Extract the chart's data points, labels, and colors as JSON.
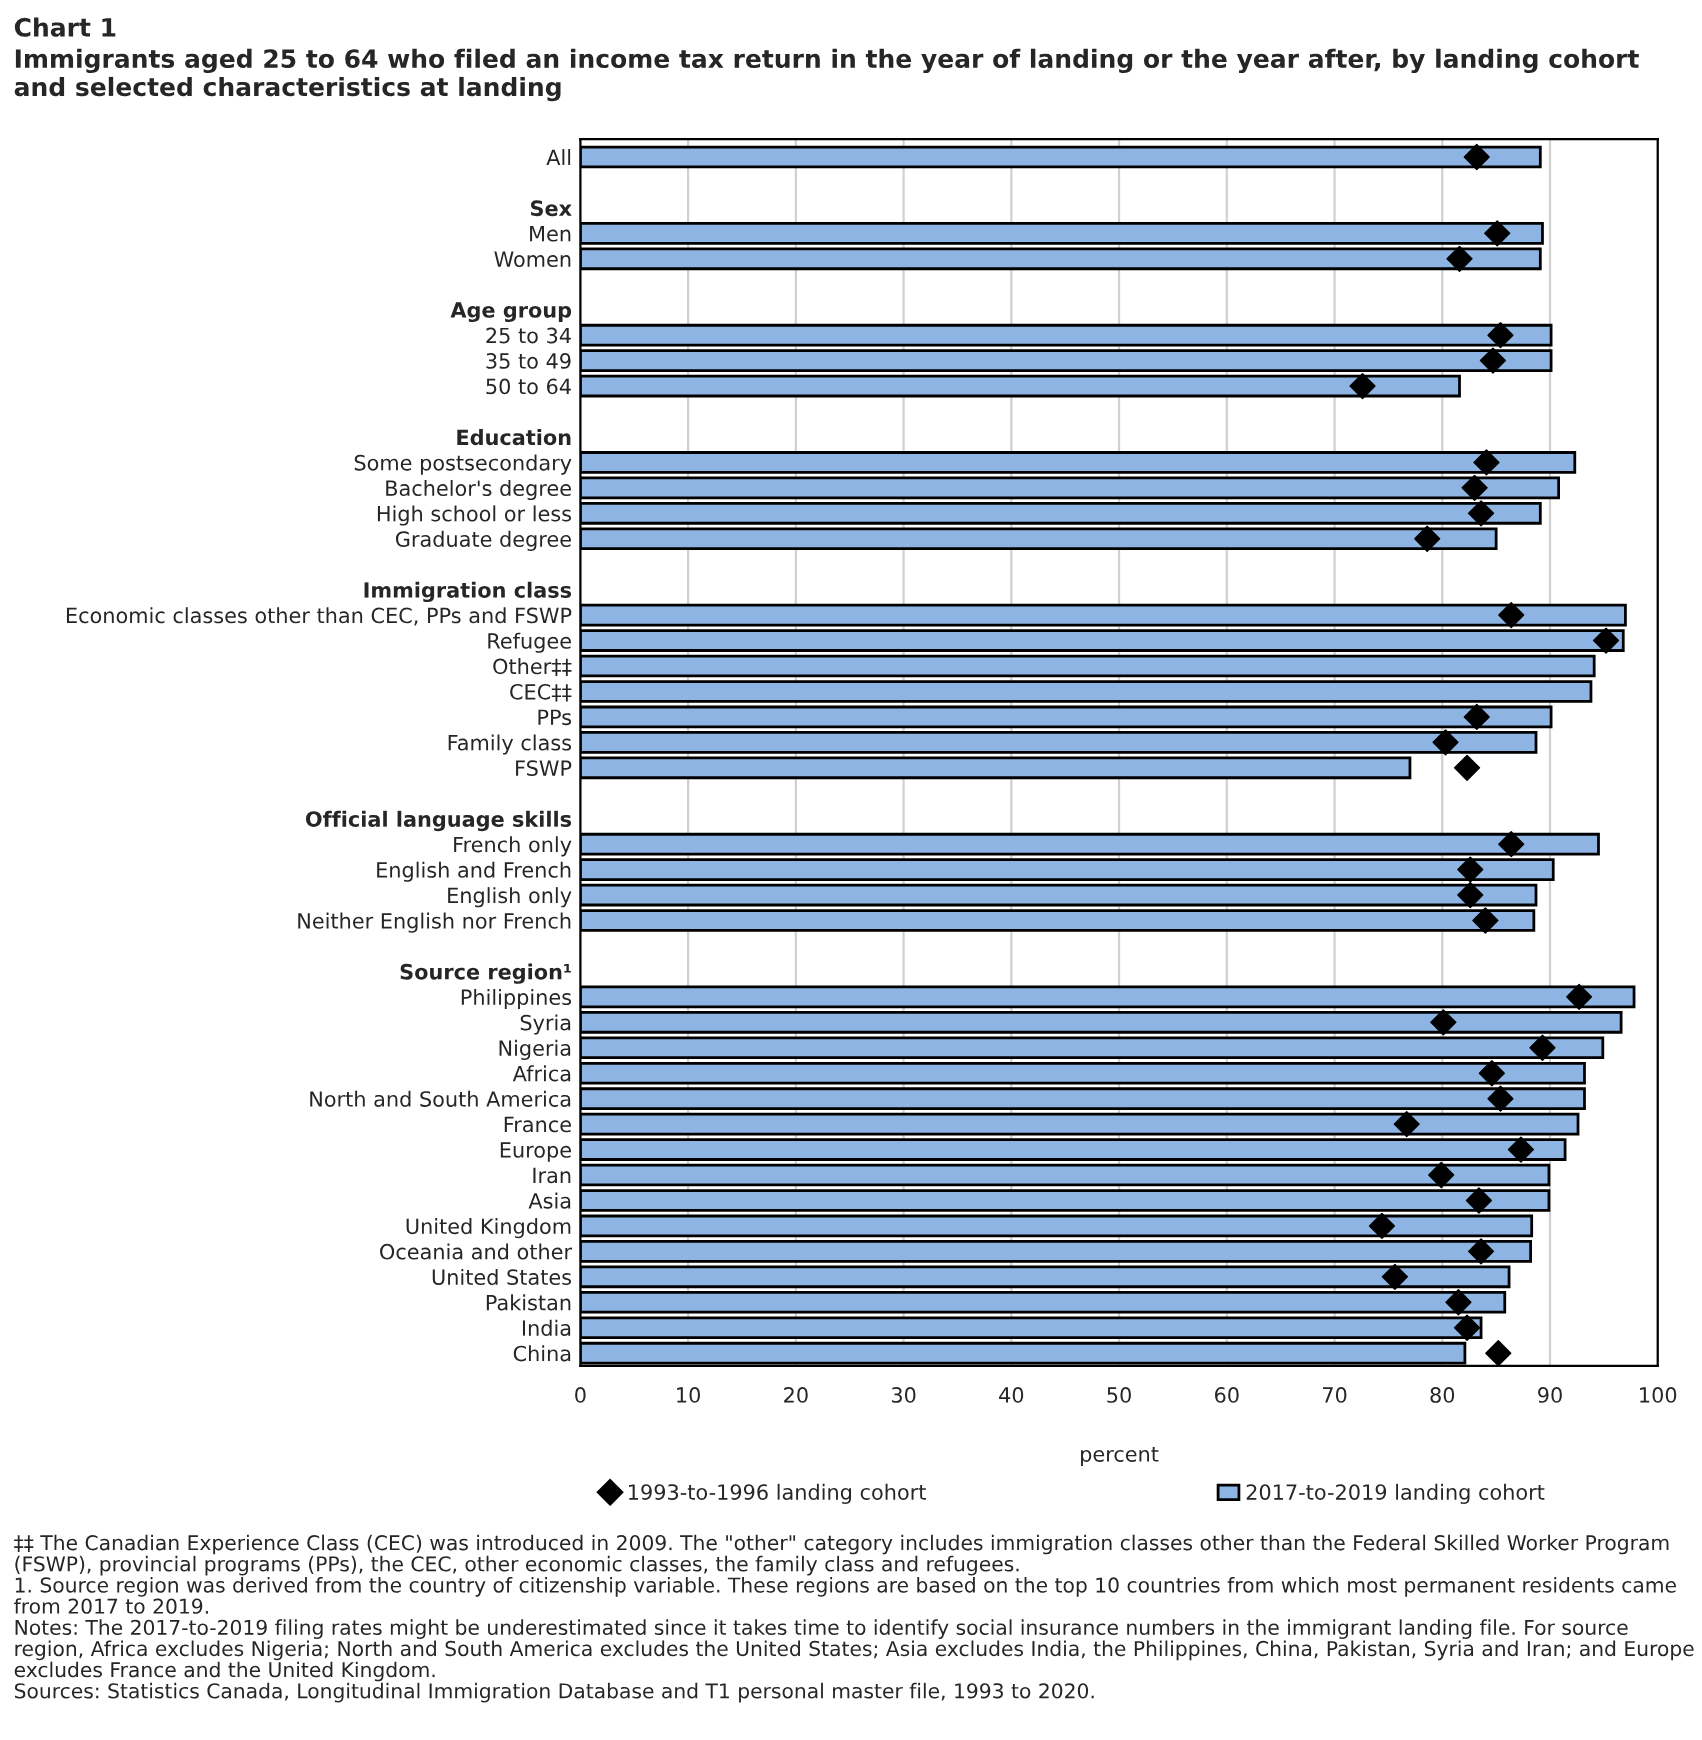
{
  "chart_data": {
    "type": "bar",
    "orientation": "horizontal",
    "title": "Chart 1",
    "subtitle": "Immigrants aged 25 to 64 who filed an income tax return in the year of landing or the year after, by landing cohort and selected characteristics at landing",
    "xlabel": "percent",
    "categories": [
      "All",
      null,
      "Sex",
      "Men",
      "Women",
      null,
      "Age group",
      "25 to 34",
      "35 to 49",
      "50 to 64",
      null,
      "Education",
      "Some postsecondary",
      "Bachelor's degree",
      "High school or less",
      "Graduate degree",
      null,
      "Immigration class",
      "Economic classes other than CEC, PPs and FSWP",
      "Refugee",
      "Other‡‡",
      "CEC‡‡",
      "PPs",
      "Family class",
      "FSWP",
      null,
      "Official language skills",
      "French only",
      "English and French",
      "English only",
      "Neither English nor French",
      null,
      "Source region¹",
      "Philippines",
      "Syria",
      "Nigeria",
      "Africa",
      "North and South America",
      "France",
      "Europe",
      "Iran",
      "Asia",
      "United Kingdom",
      "Oceania and other",
      "United States",
      "Pakistan",
      "India",
      "China"
    ],
    "series": [
      {
        "name": "2017-to-2019 landing cohort",
        "type": "bar",
        "color": "#8db4e2",
        "values": [
          89.1,
          null,
          null,
          89.3,
          89.1,
          null,
          null,
          90.1,
          90.1,
          81.6,
          null,
          null,
          92.3,
          90.8,
          89.1,
          85.0,
          null,
          null,
          97.0,
          96.8,
          94.1,
          93.8,
          90.1,
          88.7,
          77.0,
          null,
          null,
          94.5,
          90.3,
          88.7,
          88.5,
          null,
          null,
          97.8,
          96.6,
          94.9,
          93.2,
          93.2,
          92.6,
          91.4,
          89.9,
          89.9,
          88.3,
          88.2,
          86.2,
          85.8,
          83.6,
          82.1
        ]
      },
      {
        "name": "1993-to-1996 landing cohort",
        "type": "scatter",
        "color": "#000000",
        "values": [
          83.2,
          null,
          null,
          85.1,
          81.6,
          null,
          null,
          85.4,
          84.7,
          72.6,
          null,
          null,
          84.1,
          83.0,
          83.6,
          78.6,
          null,
          null,
          86.4,
          95.2,
          null,
          null,
          83.2,
          80.3,
          82.3,
          null,
          null,
          86.4,
          82.6,
          82.6,
          84.0,
          null,
          null,
          92.7,
          80.1,
          89.3,
          84.6,
          85.4,
          76.7,
          87.3,
          79.9,
          83.4,
          74.4,
          83.6,
          75.6,
          81.5,
          82.3,
          85.2
        ]
      }
    ],
    "marker": "diamond",
    "xlim": [
      0,
      100
    ],
    "xticks": [
      0,
      10,
      20,
      30,
      40,
      50,
      60,
      70,
      80,
      90,
      100
    ],
    "grid": "x",
    "legend": "bottom",
    "annotations": [
      "‡‡ The Canadian Experience Class (CEC) was introduced in 2009. The \"other\" category includes immigration classes other than the Federal Skilled Worker Program (FSWP), provincial programs (PPs), the CEC, other economic classes, the family class and refugees.",
      "1. Source region was derived from the country of citizenship variable. These regions are based on the top 10 countries from which most permanent residents came from 2017 to 2019.",
      "Notes: The 2017-to-2019 filing rates might be underestimated since it takes time to identify social insurance numbers in the immigrant landing file. For source region, Africa excludes Nigeria; North and South America excludes the United States; Asia excludes India, the Philippines, China, Pakistan, Syria and Iran; and Europe excludes France and the United Kingdom.",
      "Sources: Statistics Canada, Longitudinal Immigration Database and T1 personal master file, 1993 to 2020."
    ]
  }
}
